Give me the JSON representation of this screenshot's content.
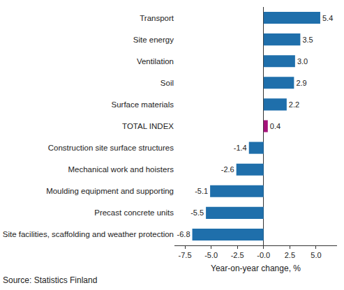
{
  "chart_data": {
    "type": "bar",
    "orientation": "horizontal",
    "categories": [
      "Transport",
      "Site energy",
      "Ventilation",
      "Soil",
      "Surface materials",
      "TOTAL INDEX",
      "Construction site surface structures",
      "Mechanical work and hoisters",
      "Moulding equipment and supporting",
      "Precast concrete units",
      "Site facilities, scaffolding and weather protection"
    ],
    "values": [
      5.4,
      3.5,
      3.0,
      2.9,
      2.2,
      0.4,
      -1.4,
      -2.6,
      -5.1,
      -5.5,
      -6.8
    ],
    "value_labels": [
      "5.4",
      "3.5",
      "3.0",
      "2.9",
      "2.2",
      "0.4",
      "-1.4",
      "-2.6",
      "-5.1",
      "-5.5",
      "-6.8"
    ],
    "colors": [
      "#1f6fab",
      "#1f6fab",
      "#1f6fab",
      "#1f6fab",
      "#1f6fab",
      "#a5127a",
      "#1f6fab",
      "#1f6fab",
      "#1f6fab",
      "#1f6fab",
      "#1f6fab"
    ],
    "data_labels": true,
    "xlabel": "Year-on-year change, %",
    "xlim": [
      -8.5,
      7
    ],
    "xticks": [
      {
        "value": -7.5,
        "label": "-7.5"
      },
      {
        "value": -5,
        "label": "-5.0"
      },
      {
        "value": -2.5,
        "label": "-2.5"
      },
      {
        "value": 0,
        "label": "-0.0"
      },
      {
        "value": 2.5,
        "label": "2.5"
      },
      {
        "value": 5,
        "label": "5.0"
      }
    ],
    "grid": false,
    "source": "Source: Statistics Finland"
  }
}
